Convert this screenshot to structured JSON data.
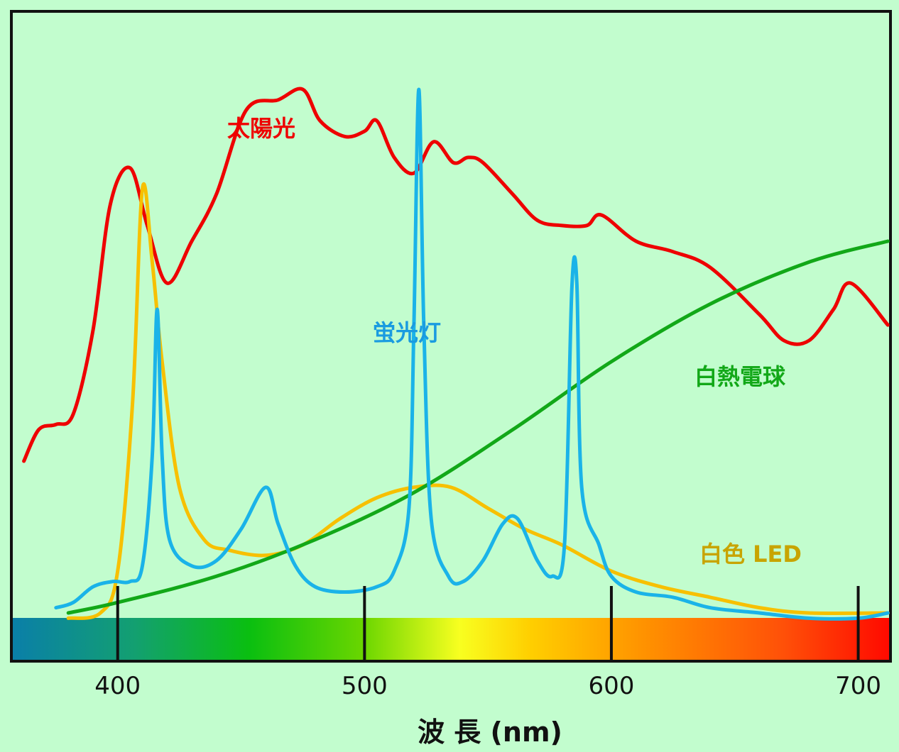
{
  "chart_data": {
    "type": "line",
    "title": "",
    "xlabel": "波 長 (nm)",
    "ylabel": "",
    "xlim": [
      357.5,
      712.5
    ],
    "ylim": [
      0,
      100
    ],
    "x_ticks": [
      400,
      500,
      600,
      700
    ],
    "grid": false,
    "legend": "inline",
    "spectrum_bar": true,
    "series": [
      {
        "name": "太陽光",
        "color": "#ee0000",
        "points": [
          [
            362,
            29
          ],
          [
            368,
            35
          ],
          [
            375,
            36
          ],
          [
            382,
            38
          ],
          [
            390,
            54
          ],
          [
            397,
            78
          ],
          [
            405,
            85
          ],
          [
            412,
            74
          ],
          [
            420,
            63
          ],
          [
            430,
            71
          ],
          [
            440,
            80
          ],
          [
            452,
            96
          ],
          [
            465,
            98
          ],
          [
            475,
            100
          ],
          [
            482,
            94
          ],
          [
            492,
            91
          ],
          [
            500,
            92
          ],
          [
            505,
            94
          ],
          [
            512,
            87
          ],
          [
            520,
            84
          ],
          [
            528,
            90
          ],
          [
            536,
            86
          ],
          [
            542,
            87
          ],
          [
            548,
            86
          ],
          [
            560,
            80
          ],
          [
            570,
            75
          ],
          [
            580,
            74
          ],
          [
            590,
            74
          ],
          [
            596,
            76
          ],
          [
            610,
            71
          ],
          [
            625,
            69
          ],
          [
            640,
            66
          ],
          [
            660,
            57
          ],
          [
            670,
            52
          ],
          [
            680,
            52
          ],
          [
            690,
            58
          ],
          [
            697,
            63
          ],
          [
            712,
            55
          ]
        ]
      },
      {
        "name": "蛍光灯",
        "color": "#1ab3e8",
        "points": [
          [
            375,
            1
          ],
          [
            382,
            2
          ],
          [
            390,
            5
          ],
          [
            398,
            6
          ],
          [
            405,
            6
          ],
          [
            410,
            9
          ],
          [
            414,
            30
          ],
          [
            416,
            58
          ],
          [
            418,
            30
          ],
          [
            421,
            14
          ],
          [
            430,
            9
          ],
          [
            440,
            10
          ],
          [
            450,
            16
          ],
          [
            460,
            24
          ],
          [
            465,
            17
          ],
          [
            472,
            9
          ],
          [
            480,
            5
          ],
          [
            492,
            4
          ],
          [
            505,
            5
          ],
          [
            512,
            8
          ],
          [
            518,
            20
          ],
          [
            520,
            55
          ],
          [
            522,
            100
          ],
          [
            524,
            55
          ],
          [
            527,
            18
          ],
          [
            534,
            7
          ],
          [
            540,
            6
          ],
          [
            548,
            10
          ],
          [
            556,
            17
          ],
          [
            562,
            18
          ],
          [
            570,
            10
          ],
          [
            576,
            7
          ],
          [
            581,
            13
          ],
          [
            584,
            62
          ],
          [
            586,
            63
          ],
          [
            588,
            24
          ],
          [
            595,
            13
          ],
          [
            600,
            7
          ],
          [
            610,
            4
          ],
          [
            625,
            3
          ],
          [
            640,
            1
          ],
          [
            660,
            0
          ],
          [
            680,
            -1
          ],
          [
            700,
            -1
          ],
          [
            712,
            0
          ]
        ]
      },
      {
        "name": "白熱電球",
        "color": "#12a818",
        "points": [
          [
            380,
            0
          ],
          [
            400,
            2
          ],
          [
            440,
            7
          ],
          [
            480,
            14
          ],
          [
            520,
            23
          ],
          [
            560,
            35
          ],
          [
            600,
            48
          ],
          [
            640,
            59
          ],
          [
            680,
            67
          ],
          [
            712,
            71
          ]
        ]
      },
      {
        "name": "白色 LED",
        "color": "#f7c000",
        "points": [
          [
            380,
            -1
          ],
          [
            393,
            0
          ],
          [
            400,
            8
          ],
          [
            406,
            40
          ],
          [
            410,
            81
          ],
          [
            414,
            67
          ],
          [
            418,
            48
          ],
          [
            425,
            24
          ],
          [
            435,
            14
          ],
          [
            445,
            12
          ],
          [
            460,
            11
          ],
          [
            475,
            13
          ],
          [
            490,
            18
          ],
          [
            505,
            22
          ],
          [
            520,
            24
          ],
          [
            535,
            24
          ],
          [
            550,
            20
          ],
          [
            565,
            16
          ],
          [
            580,
            13
          ],
          [
            600,
            8
          ],
          [
            620,
            5
          ],
          [
            640,
            3
          ],
          [
            660,
            1
          ],
          [
            680,
            0
          ],
          [
            712,
            0
          ]
        ]
      }
    ],
    "series_labels": [
      {
        "text": "太陽光",
        "color": "#ee0000"
      },
      {
        "text": "蛍光灯",
        "color": "#1a9be0"
      },
      {
        "text": "白熱電球",
        "color": "#12a818"
      },
      {
        "text": "白色 LED",
        "color": "#c8a400"
      }
    ]
  }
}
